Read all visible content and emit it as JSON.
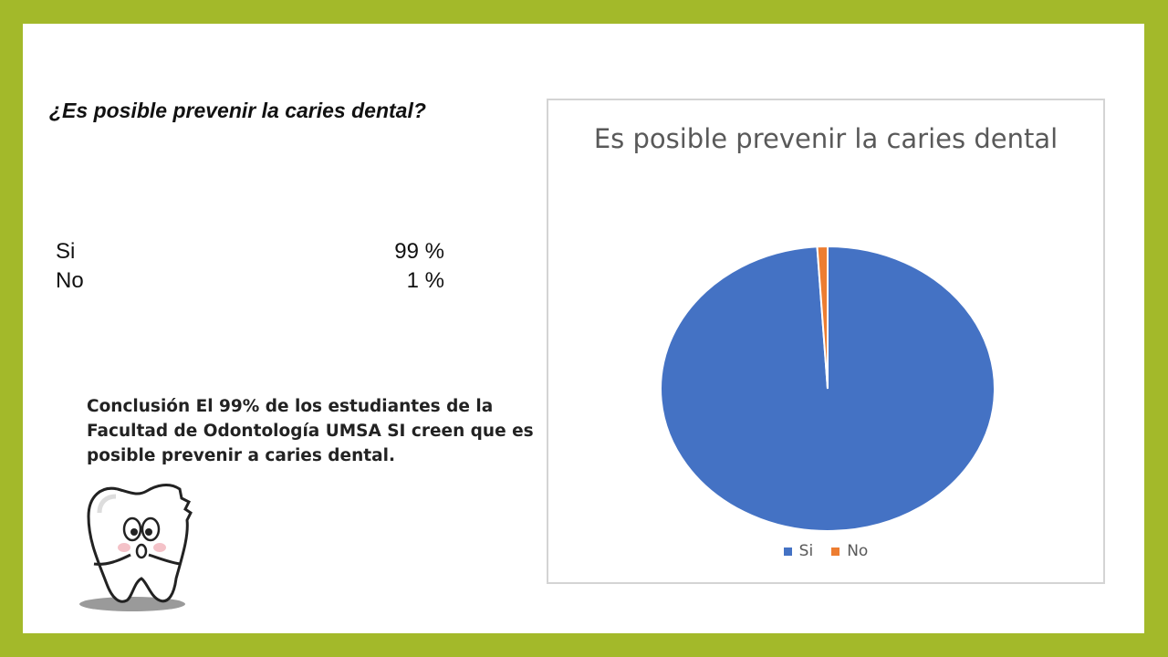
{
  "question": "¿Es posible prevenir la caries dental?",
  "stats": [
    {
      "label": "Si",
      "value": "99 %"
    },
    {
      "label": "No",
      "value": "1 %"
    }
  ],
  "conclusion": "Conclusión El 99% de los estudiantes de la Facultad de Odontología UMSA SI creen que es posible prevenir a caries dental.",
  "colors": {
    "frame": "#a3b92a",
    "si": "#4472c4",
    "no": "#ed7d31"
  },
  "chart_data": {
    "type": "pie",
    "title": "Es posible prevenir la caries dental",
    "categories": [
      "Si",
      "No"
    ],
    "values": [
      99,
      1
    ],
    "colors": [
      "#4472c4",
      "#ed7d31"
    ],
    "legend_position": "bottom"
  }
}
